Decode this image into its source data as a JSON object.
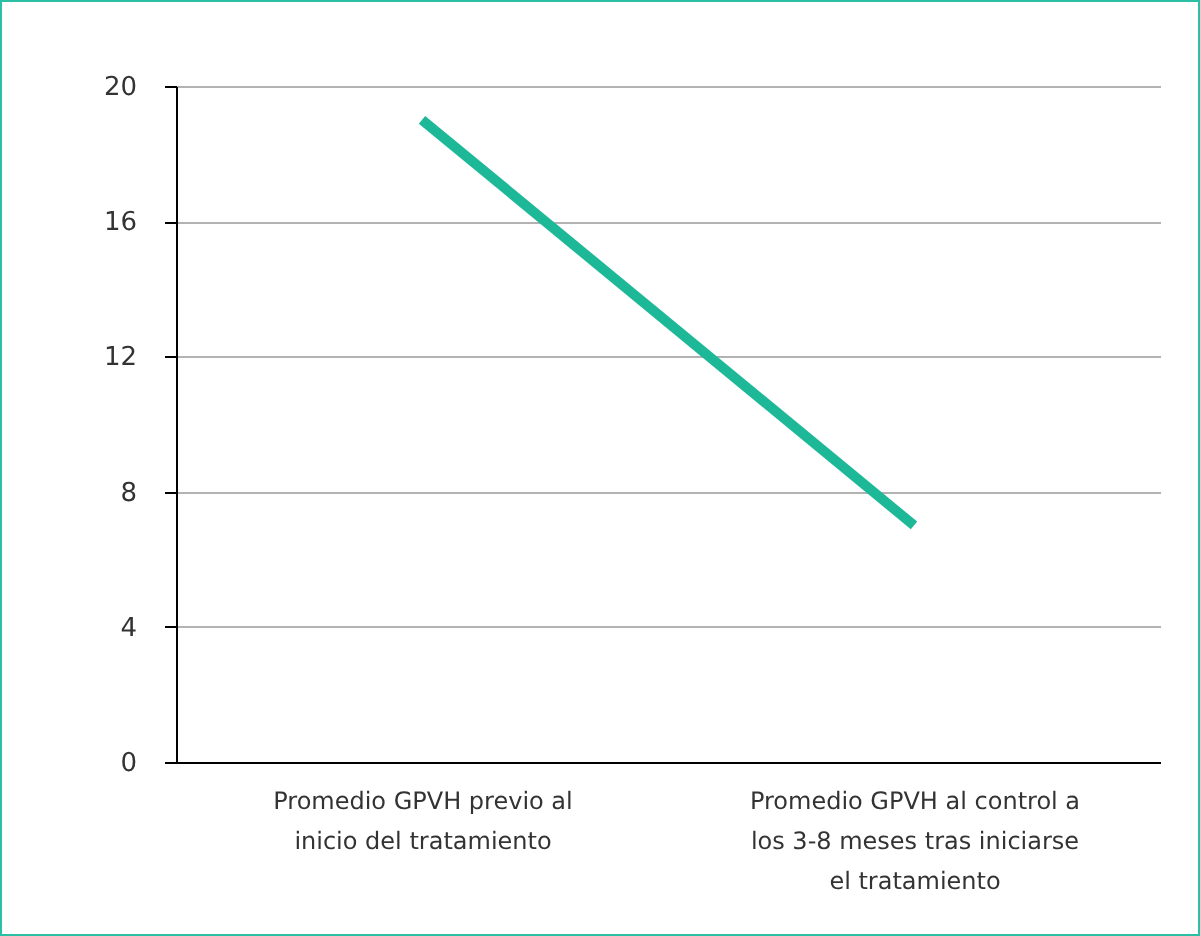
{
  "chart_data": {
    "type": "line",
    "categories": [
      "Promedio GPVH previo al inicio del tratamiento",
      "Promedio GPVH al control a los 3-8 meses tras iniciarse el tratamiento"
    ],
    "series": [
      {
        "color": "#1db897",
        "values": [
          19,
          7
        ]
      }
    ],
    "ylim": [
      0,
      20
    ],
    "yticks": [
      0,
      4,
      8,
      12,
      16,
      20
    ],
    "grid": "y",
    "marker": "none",
    "line_style": "solid"
  }
}
